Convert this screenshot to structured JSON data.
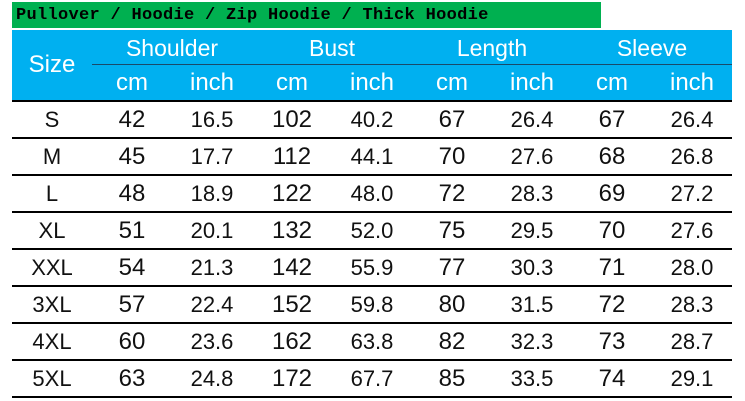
{
  "title": "Pullover / Hoodie / Zip Hoodie / Thick Hoodie",
  "colors": {
    "title_bg": "#00b050",
    "header_bg": "#00b0f0",
    "header_text": "#ffffff"
  },
  "header": {
    "size_label": "Size",
    "groups": [
      {
        "label": "Shoulder",
        "units": [
          "cm",
          "inch"
        ]
      },
      {
        "label": "Bust",
        "units": [
          "cm",
          "inch"
        ]
      },
      {
        "label": "Length",
        "units": [
          "cm",
          "inch"
        ]
      },
      {
        "label": "Sleeve",
        "units": [
          "cm",
          "inch"
        ]
      }
    ]
  },
  "rows": [
    [
      "S",
      "42",
      "16.5",
      "102",
      "40.2",
      "67",
      "26.4",
      "67",
      "26.4"
    ],
    [
      "M",
      "45",
      "17.7",
      "112",
      "44.1",
      "70",
      "27.6",
      "68",
      "26.8"
    ],
    [
      "L",
      "48",
      "18.9",
      "122",
      "48.0",
      "72",
      "28.3",
      "69",
      "27.2"
    ],
    [
      "XL",
      "51",
      "20.1",
      "132",
      "52.0",
      "75",
      "29.5",
      "70",
      "27.6"
    ],
    [
      "XXL",
      "54",
      "21.3",
      "142",
      "55.9",
      "77",
      "30.3",
      "71",
      "28.0"
    ],
    [
      "3XL",
      "57",
      "22.4",
      "152",
      "59.8",
      "80",
      "31.5",
      "72",
      "28.3"
    ],
    [
      "4XL",
      "60",
      "23.6",
      "162",
      "63.8",
      "82",
      "32.3",
      "73",
      "28.7"
    ],
    [
      "5XL",
      "63",
      "24.8",
      "172",
      "67.7",
      "85",
      "33.5",
      "74",
      "29.1"
    ]
  ]
}
